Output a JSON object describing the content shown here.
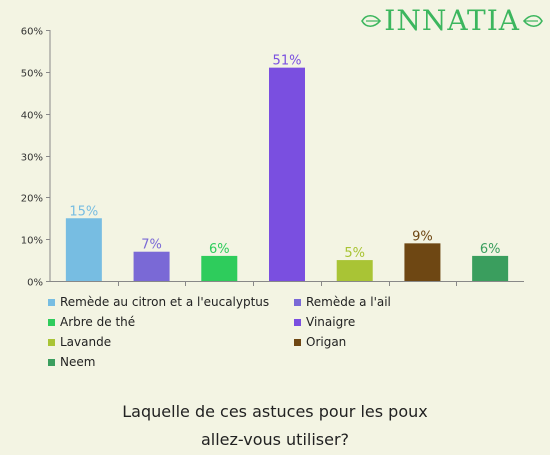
{
  "logo": {
    "text": "INNATIA"
  },
  "question": {
    "line1": "Laquelle de ces astuces pour les poux",
    "line2": "allez-vous utiliser?"
  },
  "chart_data": {
    "type": "bar",
    "categories": [
      "Remède au citron et a l'eucalyptus",
      "Remède a l'ail",
      "Arbre de thé",
      "Vinaigre",
      "Lavande",
      "Origan",
      "Neem"
    ],
    "values": [
      15,
      7,
      6,
      51,
      5,
      9,
      6
    ],
    "labels": [
      "15%",
      "7%",
      "6%",
      "51%",
      "5%",
      "9%",
      "6%"
    ],
    "colors": [
      "#77bde2",
      "#7a69d6",
      "#2ecc5c",
      "#7a4fe0",
      "#a9c435",
      "#6e4713",
      "#3a9e5e"
    ],
    "yticks": [
      "0%",
      "10%",
      "20%",
      "30%",
      "40%",
      "50%",
      "60%"
    ],
    "ylim": [
      0,
      60
    ],
    "grid": false,
    "legend_position": "bottom"
  }
}
